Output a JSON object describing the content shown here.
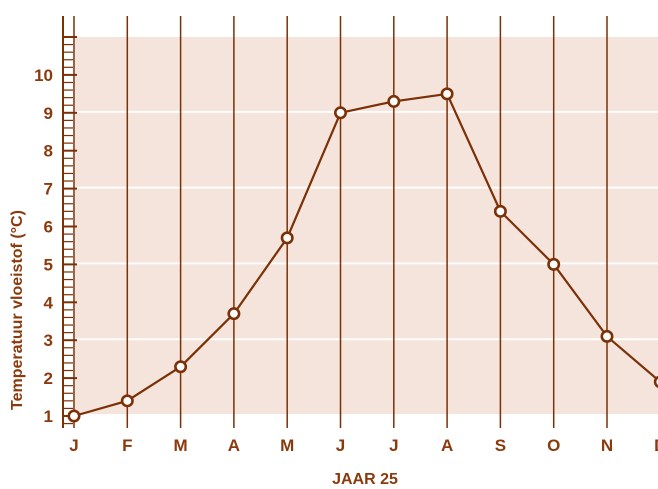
{
  "chart_data": {
    "type": "line",
    "categories": [
      "J",
      "F",
      "M",
      "A",
      "M",
      "J",
      "J",
      "A",
      "S",
      "O",
      "N",
      "D"
    ],
    "values": [
      1.0,
      1.4,
      2.3,
      3.7,
      5.7,
      9.0,
      9.3,
      9.5,
      6.4,
      5.0,
      3.1,
      1.9
    ],
    "y_ticks": [
      "1",
      "2",
      "3",
      "4",
      "5",
      "6",
      "7",
      "8",
      "9",
      "10"
    ],
    "ylim": [
      0.8,
      11
    ],
    "xlabel": "JAAR 25",
    "ylabel": "Temperatuur vloeistof (°C)",
    "grid": "vertical lines per month, horizontal shaded bands",
    "colors": {
      "line": "#7b3006",
      "marker_fill": "#ffffff",
      "band": "#f5e4dc",
      "text": "#8a3a0c"
    }
  }
}
